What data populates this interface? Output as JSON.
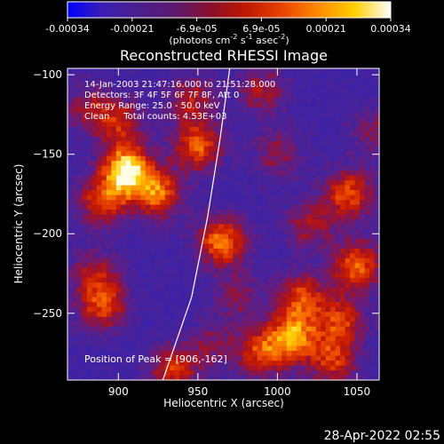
{
  "colorbar": {
    "ticks": [
      "-0.00034",
      "-0.00021",
      "-6.9e-05",
      "6.9e-05",
      "0.00021",
      "0.00034"
    ],
    "units_main": "(photons cm",
    "units_sup1": "-2",
    "units_mid1": " s",
    "units_sup2": "-1",
    "units_mid2": " asec",
    "units_sup3": "-2",
    "units_end": ")",
    "range": [
      -0.00034,
      0.00034
    ],
    "colors": [
      "#0000ff",
      "#3b1fb0",
      "#4a1e8c",
      "#5c1a6e",
      "#8a0f2a",
      "#c01800",
      "#e84400",
      "#ff8c00",
      "#ffd000",
      "#ffffff"
    ]
  },
  "chart_data": {
    "type": "heatmap",
    "title": "Reconstructed RHESSI Image",
    "xlabel": "Heliocentric X (arcsec)",
    "ylabel": "Heliocentric Y (arcsec)",
    "xlim": [
      868,
      1064
    ],
    "ylim": [
      -292,
      -96
    ],
    "xticks": [
      900,
      950,
      1000,
      1050
    ],
    "yticks": [
      -100,
      -150,
      -200,
      -250
    ],
    "annotations": [
      "14-Jan-2003 21:47:16.000 to 21:51:28.000",
      "Detectors: 3F 4F 5F 6F 7F 8F, Att 0",
      "Energy Range: 25.0 - 50.0 keV",
      "Clean     Total counts: 4.53E+03"
    ],
    "peak_label": "Position of Peak = [906,-162]",
    "peak": [
      906,
      -162
    ],
    "limb_points": [
      [
        928,
        -292
      ],
      [
        946,
        -240
      ],
      [
        956,
        -190
      ],
      [
        964,
        -140
      ],
      [
        970,
        -96
      ]
    ],
    "sources": [
      {
        "x": 905,
        "y": -160,
        "intensity": 1.0
      },
      {
        "x": 925,
        "y": -175,
        "intensity": 0.7
      },
      {
        "x": 890,
        "y": -180,
        "intensity": 0.6
      },
      {
        "x": 900,
        "y": -130,
        "intensity": 0.5
      },
      {
        "x": 950,
        "y": -145,
        "intensity": 0.65
      },
      {
        "x": 945,
        "y": -115,
        "intensity": 0.45
      },
      {
        "x": 965,
        "y": -205,
        "intensity": 0.75
      },
      {
        "x": 990,
        "y": -110,
        "intensity": 0.4
      },
      {
        "x": 1000,
        "y": -150,
        "intensity": 0.35
      },
      {
        "x": 1020,
        "y": -195,
        "intensity": 0.4
      },
      {
        "x": 1045,
        "y": -175,
        "intensity": 0.65
      },
      {
        "x": 1050,
        "y": -220,
        "intensity": 0.7
      },
      {
        "x": 1040,
        "y": -255,
        "intensity": 0.55
      },
      {
        "x": 1010,
        "y": -265,
        "intensity": 0.75
      },
      {
        "x": 1015,
        "y": -240,
        "intensity": 0.6
      },
      {
        "x": 990,
        "y": -275,
        "intensity": 0.6
      },
      {
        "x": 1035,
        "y": -280,
        "intensity": 0.55
      },
      {
        "x": 890,
        "y": -245,
        "intensity": 0.6
      },
      {
        "x": 885,
        "y": -225,
        "intensity": 0.4
      },
      {
        "x": 935,
        "y": -285,
        "intensity": 0.55
      },
      {
        "x": 960,
        "y": -270,
        "intensity": 0.3
      },
      {
        "x": 975,
        "y": -240,
        "intensity": 0.3
      },
      {
        "x": 880,
        "y": -120,
        "intensity": 0.35
      },
      {
        "x": 1060,
        "y": -135,
        "intensity": 0.3
      }
    ],
    "grid": false
  },
  "footer": {
    "date": "28-Apr-2022 02:55"
  }
}
